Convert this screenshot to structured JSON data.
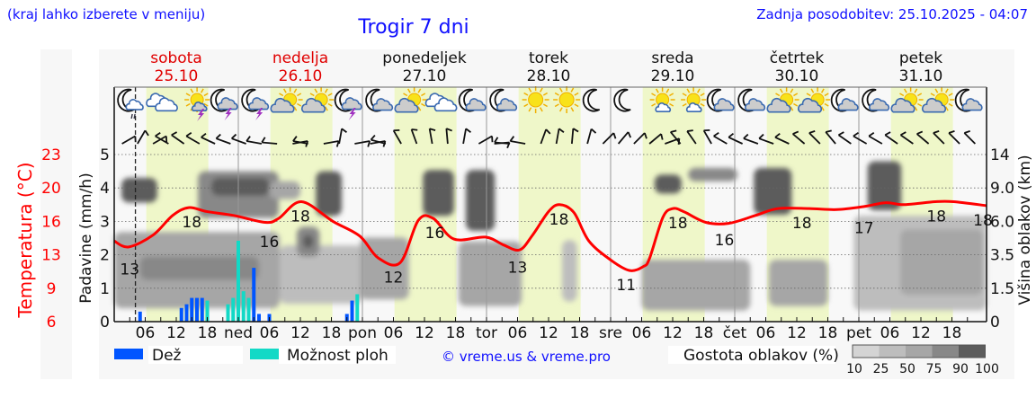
{
  "header": {
    "hint": "(kraj lahko izberete v meniju)",
    "title": "Trogir 7 dni",
    "updated": "Zadnja posodobitev: 25.10.2025 - 04:07"
  },
  "days": [
    {
      "name": "sobota",
      "date": "25.10",
      "weekend": true
    },
    {
      "name": "nedelja",
      "date": "26.10",
      "weekend": true
    },
    {
      "name": "ponedeljek",
      "date": "27.10",
      "weekend": false
    },
    {
      "name": "torek",
      "date": "28.10",
      "weekend": false
    },
    {
      "name": "sreda",
      "date": "29.10",
      "weekend": false
    },
    {
      "name": "četrtek",
      "date": "30.10",
      "weekend": false
    },
    {
      "name": "petek",
      "date": "31.10",
      "weekend": false
    }
  ],
  "axes": {
    "rain_label": "Padavine (mm/h)",
    "cloud_label": "Višina oblakov (km)",
    "temp_label": "Temperatura (°C)",
    "rain_ticks": [
      "0",
      "1",
      "2",
      "3",
      "4",
      "5"
    ],
    "cloud_ticks": [
      "0",
      "1.5",
      "3.5",
      "6.0",
      "9.0",
      "14"
    ],
    "temp_ticks": [
      "6",
      "9",
      "13",
      "16",
      "20",
      "23"
    ],
    "x_ticks": [
      "06",
      "12",
      "18",
      "ned",
      "06",
      "12",
      "18",
      "pon",
      "06",
      "12",
      "18",
      "tor",
      "06",
      "12",
      "18",
      "sre",
      "06",
      "12",
      "18",
      "čet",
      "06",
      "12",
      "18",
      "pet",
      "06",
      "12",
      "18"
    ]
  },
  "legend": {
    "rain": "Dež",
    "showers": "Možnost ploh",
    "copyright": "© vreme.us & vreme.pro",
    "density_title": "Gostota oblakov (%)",
    "density_ticks": [
      "10",
      "25",
      "50",
      "75",
      "90",
      "100"
    ]
  },
  "colors": {
    "rain": "#0055ff",
    "showers": "#12d9c6",
    "temperature": "#ff0000",
    "daytime": "#eff7c9",
    "density": [
      "#d4d4d4",
      "#bdbdbd",
      "#a6a6a6",
      "#888888",
      "#5c5c5c"
    ]
  },
  "chart_data": {
    "type": "line+bar",
    "title": "Trogir 7 dni",
    "x_unit": "hours since Sat 25.10 00:00",
    "xlim": [
      0,
      168
    ],
    "now_hour": 4.1,
    "rain_ylim": [
      0,
      5
    ],
    "temp_ylim": [
      6,
      23
    ],
    "cloud_km_ticks": [
      0,
      1.5,
      3.5,
      6,
      9,
      14
    ],
    "temperature": [
      [
        0,
        14.2
      ],
      [
        2.8,
        13.6
      ],
      [
        7.5,
        14.8
      ],
      [
        11.3,
        16.8
      ],
      [
        14.4,
        17.6
      ],
      [
        17.9,
        17.2
      ],
      [
        23.1,
        16.8
      ],
      [
        29.2,
        16.1
      ],
      [
        31.8,
        16.5
      ],
      [
        36.2,
        18.2
      ],
      [
        42.3,
        16.2
      ],
      [
        47.5,
        14.7
      ],
      [
        51,
        12.5
      ],
      [
        55.3,
        12.0
      ],
      [
        58.8,
        16.3
      ],
      [
        61.7,
        16.5
      ],
      [
        65.7,
        14.4
      ],
      [
        71.8,
        14.6
      ],
      [
        75.3,
        13.8
      ],
      [
        78.4,
        13.3
      ],
      [
        80.9,
        14.8
      ],
      [
        84,
        17.2
      ],
      [
        86.1,
        17.9
      ],
      [
        88.9,
        17.1
      ],
      [
        91.8,
        14.2
      ],
      [
        96.2,
        12.2
      ],
      [
        99.7,
        11.2
      ],
      [
        102.3,
        11.6
      ],
      [
        103.5,
        12.4
      ],
      [
        106.1,
        16.6
      ],
      [
        108,
        17.5
      ],
      [
        110.1,
        17.2
      ],
      [
        114.4,
        16.1
      ],
      [
        118.8,
        16.0
      ],
      [
        124,
        16.8
      ],
      [
        128.3,
        17.5
      ],
      [
        134.4,
        17.5
      ],
      [
        139.7,
        17.4
      ],
      [
        144.9,
        17.7
      ],
      [
        149.2,
        18.1
      ],
      [
        152.7,
        17.9
      ],
      [
        158.8,
        18.2
      ],
      [
        162.3,
        18.2
      ],
      [
        168.7,
        17.8
      ]
    ],
    "temperature_labels": [
      {
        "h": 3,
        "t": "13",
        "v": 12.8
      },
      {
        "h": 15,
        "t": "18",
        "v": 17.6
      },
      {
        "h": 30,
        "t": "16",
        "v": 15.6
      },
      {
        "h": 36,
        "t": "18",
        "v": 18.2
      },
      {
        "h": 54,
        "t": "12",
        "v": 12.0
      },
      {
        "h": 62,
        "t": "16",
        "v": 16.5
      },
      {
        "h": 78,
        "t": "13",
        "v": 13.0
      },
      {
        "h": 86,
        "t": "18",
        "v": 17.9
      },
      {
        "h": 99,
        "t": "11",
        "v": 11.2
      },
      {
        "h": 109,
        "t": "18",
        "v": 17.5
      },
      {
        "h": 118,
        "t": "16",
        "v": 15.8
      },
      {
        "h": 133,
        "t": "18",
        "v": 17.5
      },
      {
        "h": 145,
        "t": "17",
        "v": 17.0
      },
      {
        "h": 159,
        "t": "18",
        "v": 18.2
      },
      {
        "h": 168,
        "t": "18",
        "v": 17.8
      }
    ],
    "precipitation": [
      {
        "h": 5,
        "v": 0.3,
        "kind": "rain"
      },
      {
        "h": 13,
        "v": 0.41,
        "kind": "rain"
      },
      {
        "h": 14,
        "v": 0.52,
        "kind": "rain"
      },
      {
        "h": 15,
        "v": 0.71,
        "kind": "rain"
      },
      {
        "h": 16,
        "v": 0.71,
        "kind": "rain"
      },
      {
        "h": 17,
        "v": 0.71,
        "kind": "rain"
      },
      {
        "h": 18,
        "v": 0.63,
        "kind": "showers"
      },
      {
        "h": 22,
        "v": 0.52,
        "kind": "showers"
      },
      {
        "h": 23,
        "v": 0.71,
        "kind": "showers"
      },
      {
        "h": 24,
        "v": 2.42,
        "kind": "showers"
      },
      {
        "h": 25,
        "v": 0.91,
        "kind": "showers"
      },
      {
        "h": 26,
        "v": 0.71,
        "kind": "showers"
      },
      {
        "h": 27,
        "v": 1.61,
        "kind": "rain"
      },
      {
        "h": 28,
        "v": 0.23,
        "kind": "rain"
      },
      {
        "h": 30,
        "v": 0.23,
        "kind": "rain"
      },
      {
        "h": 45,
        "v": 0.23,
        "kind": "rain"
      },
      {
        "h": 46,
        "v": 0.63,
        "kind": "rain"
      },
      {
        "h": 47,
        "v": 0.82,
        "kind": "showers"
      }
    ],
    "cloud_cover": [
      {
        "h0": 0,
        "h1": 32,
        "km0": 0.6,
        "km1": 5.2,
        "density": 50
      },
      {
        "h0": 32,
        "h1": 48,
        "km0": 0.8,
        "km1": 4.2,
        "density": 25
      },
      {
        "h0": 47.5,
        "h1": 57,
        "km0": 1,
        "km1": 4.8,
        "density": 50
      },
      {
        "h0": 66.6,
        "h1": 78.8,
        "km0": 0.7,
        "km1": 4.5,
        "density": 50
      },
      {
        "h0": 86.6,
        "h1": 89.5,
        "km0": 0.9,
        "km1": 4.6,
        "density": 25
      },
      {
        "h0": 102,
        "h1": 123,
        "km0": 0.5,
        "km1": 3.2,
        "density": 50
      },
      {
        "h0": 126.6,
        "h1": 138,
        "km0": 0.7,
        "km1": 3.2,
        "density": 50
      },
      {
        "h0": 143,
        "h1": 168.7,
        "km0": 0.5,
        "km1": 6.5,
        "density": 25
      },
      {
        "h0": 152,
        "h1": 168,
        "km0": 1.2,
        "km1": 5.4,
        "density": 50
      },
      {
        "h0": 5,
        "h1": 28,
        "km0": 2.0,
        "km1": 3.4,
        "density": 75
      },
      {
        "h0": 35.3,
        "h1": 39.7,
        "km0": 3.4,
        "km1": 5.6,
        "density": 75
      },
      {
        "h0": 36.5,
        "h1": 38.5,
        "km0": 4.0,
        "km1": 5.0,
        "density": 90
      },
      {
        "h0": 1.4,
        "h1": 8.3,
        "km0": 7.7,
        "km1": 10.5,
        "density": 90
      },
      {
        "h0": 16.2,
        "h1": 31.8,
        "km0": 6.3,
        "km1": 11.5,
        "density": 75
      },
      {
        "h0": 18.8,
        "h1": 30,
        "km0": 8.3,
        "km1": 10.5,
        "density": 90
      },
      {
        "h0": 30,
        "h1": 36,
        "km0": 8,
        "km1": 10,
        "density": 50
      },
      {
        "h0": 39,
        "h1": 44,
        "km0": 6.5,
        "km1": 11.5,
        "density": 90
      },
      {
        "h0": 59.7,
        "h1": 65.7,
        "km0": 6.5,
        "km1": 11.7,
        "density": 90
      },
      {
        "h0": 68,
        "h1": 73.6,
        "km0": 5.3,
        "km1": 11.7,
        "density": 90
      },
      {
        "h0": 104.5,
        "h1": 109.7,
        "km0": 8.5,
        "km1": 11,
        "density": 90
      },
      {
        "h0": 111,
        "h1": 120.5,
        "km0": 10,
        "km1": 12,
        "density": 75
      },
      {
        "h0": 123.7,
        "h1": 131,
        "km0": 6.6,
        "km1": 12,
        "density": 90
      },
      {
        "h0": 145.7,
        "h1": 152.2,
        "km0": 7,
        "km1": 13,
        "density": 90
      }
    ],
    "weather_icons": [
      "moon-cloud-drizzle",
      "cloud",
      "sun-storm",
      "moon-storm",
      "moon-storm",
      "sun-cloud",
      "sun-cloud",
      "moon-storm",
      "moon-cloud",
      "sun-cloud",
      "cloud",
      "moon-cloud",
      "moon-cloud",
      "sun",
      "sun",
      "moon",
      "moon",
      "sun-small-cloud",
      "sun-small-cloud",
      "moon-cloud",
      "moon-cloud",
      "sun-cloud",
      "sun-cloud",
      "moon-cloud",
      "moon-cloud",
      "sun-cloud",
      "sun-cloud",
      "moon-cloud"
    ],
    "wind_staff_angles_deg": [
      60,
      30,
      60,
      -60,
      -55,
      -60,
      -65,
      -70,
      -70,
      -80,
      -85,
      80,
      -80,
      80,
      10,
      80,
      80,
      -75,
      -30,
      -20,
      -10,
      -5,
      10,
      60,
      85,
      -85,
      -80,
      20,
      10,
      5,
      15,
      45,
      40,
      45,
      50,
      70,
      -40,
      -35,
      -30,
      -60,
      -65,
      -70,
      -70,
      -65,
      -50,
      -45,
      -40,
      -55,
      -60,
      -60,
      -55,
      -55,
      -50,
      -45,
      -45,
      -45
    ]
  }
}
